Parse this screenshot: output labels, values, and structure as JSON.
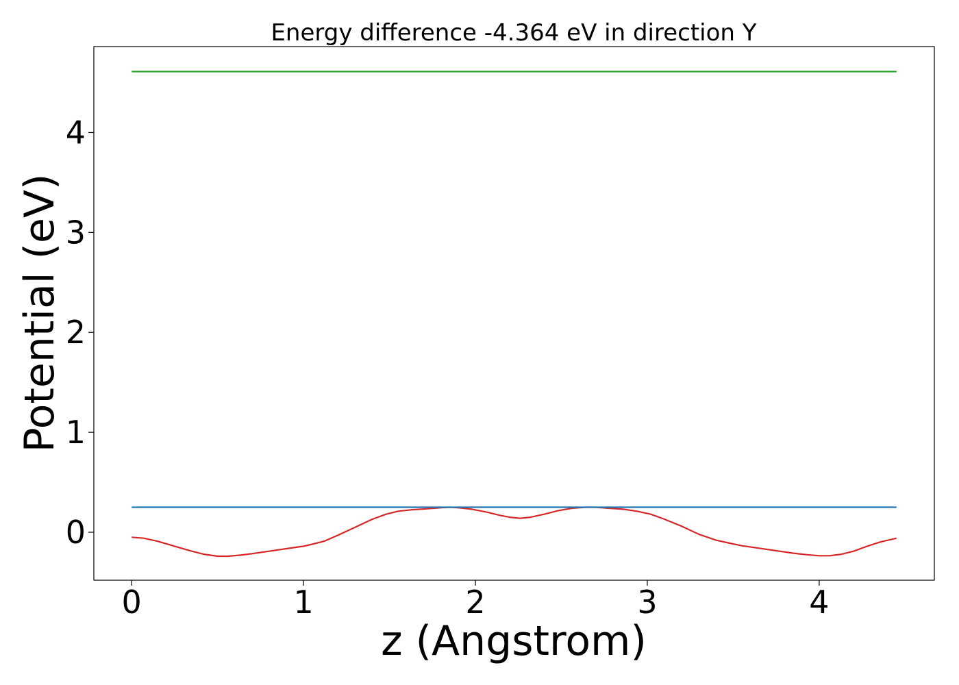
{
  "chart_data": {
    "type": "line",
    "title": "Energy difference -4.364 eV in direction Y",
    "xlabel": "z (Angstrom)",
    "ylabel": "Potential (eV)",
    "xlim": [
      -0.22,
      4.67
    ],
    "ylim": [
      -0.48,
      4.86
    ],
    "xticks": [
      0,
      1,
      2,
      3,
      4
    ],
    "xtick_labels": [
      "0",
      "1",
      "2",
      "3",
      "4"
    ],
    "yticks": [
      0,
      1,
      2,
      3,
      4
    ],
    "ytick_labels": [
      "0",
      "1",
      "2",
      "3",
      "4"
    ],
    "grid": false,
    "series": [
      {
        "color": "#d62728",
        "x": [
          0.0,
          0.07,
          0.15,
          0.25,
          0.35,
          0.42,
          0.5,
          0.56,
          0.63,
          0.7,
          0.8,
          0.9,
          1.0,
          1.05,
          1.12,
          1.2,
          1.3,
          1.4,
          1.48,
          1.55,
          1.63,
          1.72,
          1.8,
          1.85,
          1.9,
          1.98,
          2.07,
          2.14,
          2.2,
          2.26,
          2.32,
          2.4,
          2.48,
          2.56,
          2.64,
          2.7,
          2.78,
          2.86,
          2.94,
          3.02,
          3.1,
          3.2,
          3.3,
          3.4,
          3.48,
          3.55,
          3.65,
          3.75,
          3.85,
          3.93,
          4.0,
          4.06,
          4.13,
          4.2,
          4.28,
          4.35,
          4.45
        ],
        "y": [
          -0.05,
          -0.06,
          -0.09,
          -0.14,
          -0.19,
          -0.22,
          -0.24,
          -0.24,
          -0.23,
          -0.215,
          -0.19,
          -0.165,
          -0.14,
          -0.12,
          -0.09,
          -0.03,
          0.05,
          0.13,
          0.18,
          0.21,
          0.225,
          0.235,
          0.245,
          0.25,
          0.245,
          0.23,
          0.2,
          0.17,
          0.15,
          0.14,
          0.15,
          0.18,
          0.215,
          0.24,
          0.25,
          0.25,
          0.24,
          0.23,
          0.21,
          0.18,
          0.13,
          0.06,
          -0.02,
          -0.08,
          -0.11,
          -0.135,
          -0.16,
          -0.185,
          -0.21,
          -0.225,
          -0.235,
          -0.235,
          -0.22,
          -0.19,
          -0.14,
          -0.1,
          -0.06
        ]
      },
      {
        "color": "#1f77b4",
        "x": [
          0.0,
          4.45
        ],
        "y": [
          0.25,
          0.25
        ]
      },
      {
        "color": "#2ca02c",
        "x": [
          0.0,
          4.45
        ],
        "y": [
          4.61,
          4.61
        ]
      }
    ]
  }
}
